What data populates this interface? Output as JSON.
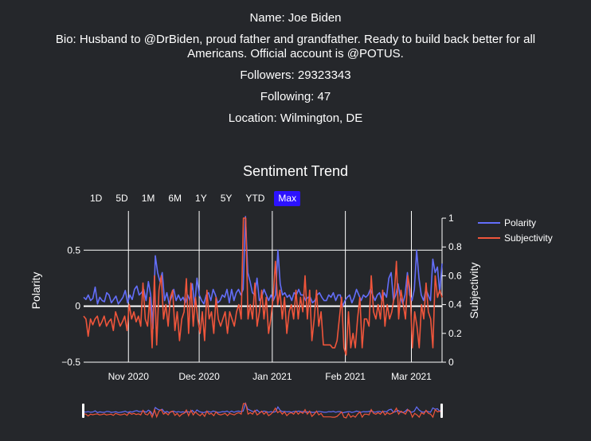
{
  "profile": {
    "name": "Name: Joe Biden",
    "bio": "Bio: Husband to @DrBiden, proud father and grandfather. Ready to build back better for all Americans. Official account is @POTUS.",
    "followers": "Followers: 29323343",
    "following": "Following: 47",
    "location": "Location: Wilmington, DE"
  },
  "range_selector": {
    "buttons": [
      "1D",
      "5D",
      "1M",
      "6M",
      "1Y",
      "5Y",
      "YTD",
      "Max"
    ],
    "active": "Max"
  },
  "colors": {
    "background": "#25272b",
    "polarity": "#636efa",
    "subjectivity": "#ef553b",
    "active_button": "#2c12ff",
    "grid": "#ffffff"
  },
  "chart_data": {
    "type": "line",
    "title": "Sentiment Trend",
    "x_ticks": [
      "Nov 2020",
      "Dec 2020",
      "Jan 2021",
      "Feb 2021",
      "Mar 2021"
    ],
    "x_range": [
      "2020-10-13",
      "2021-03-14"
    ],
    "y_left": {
      "label": "Polarity",
      "range": [
        -0.5,
        0.85
      ],
      "ticks": [
        "0.5",
        "0",
        "−0.5"
      ]
    },
    "y_right": {
      "label": "Subjectivity",
      "range": [
        0,
        1.05
      ],
      "ticks": [
        "1",
        "0.8",
        "0.6",
        "0.4",
        "0.2",
        "0"
      ]
    },
    "legend": {
      "position": "top-right",
      "entries": [
        "Polarity",
        "Subjectivity"
      ]
    },
    "series": [
      {
        "name": "Polarity",
        "axis": "left",
        "values": [
          0.08,
          0.06,
          0.1,
          0.05,
          0.07,
          0.17,
          0.02,
          0.08,
          0.05,
          0.04,
          0.12,
          0.1,
          0.03,
          0.06,
          0.09,
          0.02,
          0.05,
          0.08,
          0.14,
          0.03,
          0.1,
          0.06,
          0.15,
          0.18,
          0.1,
          0.12,
          0.15,
          0.05,
          0.22,
          0.1,
          -0.2,
          0.45,
          0.3,
          0.22,
          0.3,
          0.05,
          0.12,
          0.02,
          0.08,
          0.15,
          0.05,
          0.1,
          0.05,
          0.08,
          0.03,
          0.1,
          0.05,
          0.2,
          0.0,
          0.25,
          0.1,
          0.05,
          0.02,
          0.1,
          0.12,
          0.05,
          0.15,
          0.1,
          0.03,
          0.05,
          0.1,
          0.08,
          0.15,
          0.03,
          0.15,
          0.05,
          0.12,
          0.15,
          0.1,
          0.15,
          0.8,
          0.3,
          0.22,
          0.12,
          0.1,
          0.25,
          0.05,
          0.08,
          0.15,
          0.1,
          0.05,
          0.1,
          0.05,
          0.1,
          0.5,
          0.2,
          0.1,
          0.12,
          0.08,
          0.1,
          0.05,
          0.12,
          0.1,
          0.15,
          0.1,
          0.1,
          0.05,
          0.08,
          0.08,
          0.03,
          0.05,
          0.1,
          0.12,
          0.08,
          0.05,
          0.05,
          0.1,
          0.08,
          0.12,
          0.05,
          0.1,
          0.1,
          0.0,
          0.05,
          0.08,
          0.1,
          0.03,
          0.08,
          0.15,
          0.1,
          0.05,
          0.1,
          0.08,
          0.1,
          0.15,
          0.1,
          0.05,
          0.1,
          0.12,
          0.05,
          0.12,
          0.08,
          0.25,
          0.3,
          0.05,
          0.1,
          0.2,
          0.08,
          0.02,
          0.1,
          0.3,
          0.1,
          0.05,
          0.15,
          0.5,
          0.25,
          0.1,
          0.05,
          0.15,
          0.1,
          0.05,
          0.42,
          0.3,
          0.35,
          0.12,
          0.38
        ]
      },
      {
        "name": "Subjectivity",
        "axis": "right",
        "values": [
          0.32,
          0.3,
          0.18,
          0.3,
          0.26,
          0.3,
          0.32,
          0.25,
          0.28,
          0.32,
          0.25,
          0.28,
          0.3,
          0.22,
          0.35,
          0.3,
          0.25,
          0.28,
          0.32,
          0.22,
          0.4,
          0.3,
          0.35,
          0.28,
          0.32,
          0.25,
          0.55,
          0.3,
          0.25,
          0.45,
          0.1,
          0.6,
          0.12,
          0.5,
          0.6,
          0.3,
          0.4,
          0.25,
          0.45,
          0.5,
          0.22,
          0.35,
          0.15,
          0.3,
          0.35,
          0.58,
          0.2,
          0.55,
          0.25,
          0.45,
          0.3,
          0.2,
          0.35,
          0.15,
          0.5,
          0.3,
          0.35,
          0.2,
          0.45,
          0.3,
          0.25,
          0.3,
          0.35,
          0.2,
          0.35,
          0.3,
          0.25,
          0.35,
          0.4,
          0.3,
          1.0,
          1.0,
          0.3,
          0.4,
          0.3,
          0.55,
          0.25,
          0.35,
          0.5,
          0.3,
          0.45,
          0.2,
          0.3,
          0.45,
          0.7,
          0.4,
          0.5,
          0.3,
          0.45,
          0.2,
          0.35,
          0.4,
          0.3,
          0.5,
          0.3,
          0.45,
          0.35,
          0.6,
          0.3,
          0.5,
          0.15,
          0.3,
          0.5,
          0.25,
          0.35,
          0.12,
          0.12,
          0.12,
          0.12,
          0.1,
          0.1,
          0.15,
          0.3,
          0.45,
          0.1,
          0.05,
          0.35,
          0.1,
          0.2,
          0.1,
          0.3,
          0.45,
          0.1,
          0.3,
          0.3,
          0.25,
          0.6,
          0.35,
          0.3,
          0.4,
          0.3,
          0.5,
          0.25,
          0.4,
          0.3,
          0.35,
          0.45,
          0.7,
          0.3,
          0.5,
          0.4,
          0.3,
          0.6,
          0.5,
          0.1,
          0.35,
          0.25,
          0.1,
          0.4,
          0.3,
          0.55,
          0.35,
          0.3,
          0.1,
          0.6,
          0.45,
          0.5,
          0.45
        ]
      }
    ]
  }
}
